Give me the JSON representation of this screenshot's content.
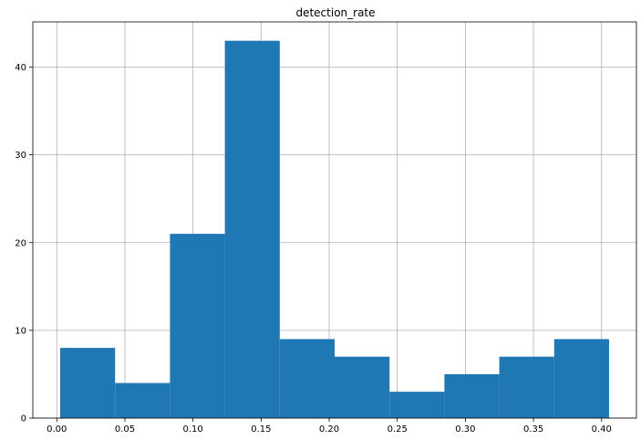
{
  "chart_data": {
    "type": "bar",
    "title": "detection_rate",
    "xlabel": "",
    "ylabel": "",
    "bin_edges": [
      0.0025,
      0.0428,
      0.0831,
      0.1234,
      0.1637,
      0.204,
      0.2443,
      0.2846,
      0.3249,
      0.3652,
      0.4055
    ],
    "values": [
      8,
      4,
      21,
      43,
      9,
      7,
      3,
      5,
      7,
      9
    ],
    "xlim": [
      -0.0176,
      0.4256
    ],
    "ylim": [
      0,
      45.15
    ],
    "xticks": [
      0.0,
      0.05,
      0.1,
      0.15,
      0.2,
      0.25,
      0.3,
      0.35,
      0.4
    ],
    "xtick_labels": [
      "0.00",
      "0.05",
      "0.10",
      "0.15",
      "0.20",
      "0.25",
      "0.30",
      "0.35",
      "0.40"
    ],
    "yticks": [
      0,
      10,
      20,
      30,
      40
    ],
    "ytick_labels": [
      "0",
      "10",
      "20",
      "30",
      "40"
    ],
    "grid": true,
    "bar_color": "#1f77b4"
  }
}
